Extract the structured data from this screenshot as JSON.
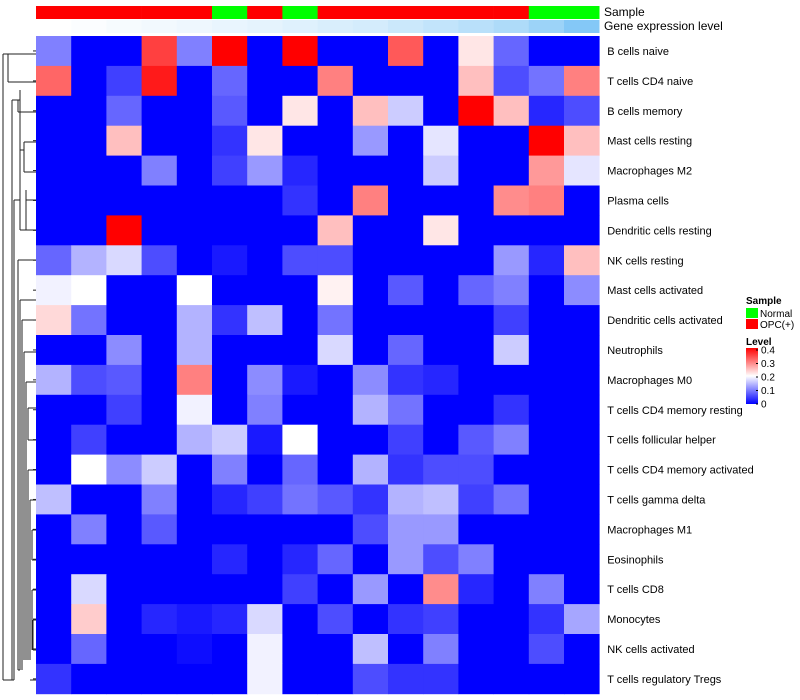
{
  "chart_data": {
    "type": "heatmap",
    "annotation_labels": {
      "sample": "Sample",
      "gene_expression": "Gene expression level"
    },
    "rows": [
      "B cells naive",
      "T cells CD4 naive",
      "B cells memory",
      "Mast cells resting",
      "Macrophages M2",
      "Plasma cells",
      "Dendritic cells resting",
      "NK cells resting",
      "Mast cells activated",
      "Dendritic cells activated",
      "Neutrophils",
      "Macrophages M0",
      "T cells CD4 memory resting",
      "T cells follicular helper",
      "T cells CD4 memory activated",
      "T cells gamma delta",
      "Macrophages M1",
      "Eosinophils",
      "T cells CD8",
      "Monocytes",
      "NK cells activated",
      "T cells regulatory  Tregs"
    ],
    "sample_groups": [
      "OPC(+)",
      "OPC(+)",
      "OPC(+)",
      "OPC(+)",
      "OPC(+)",
      "Normal",
      "OPC(+)",
      "Normal",
      "OPC(+)",
      "OPC(+)",
      "OPC(+)",
      "OPC(+)",
      "OPC(+)",
      "OPC(+)",
      "Normal",
      "Normal"
    ],
    "gene_expression_level": [
      0.0,
      0.03,
      0.06,
      0.09,
      0.12,
      0.15,
      0.18,
      0.22,
      0.26,
      0.3,
      0.36,
      0.42,
      0.48,
      0.56,
      0.68,
      0.85
    ],
    "values": [
      [
        0.1,
        0,
        0,
        0.35,
        0.1,
        0.4,
        0,
        0.4,
        0,
        0,
        0.33,
        0,
        0.22,
        0.08,
        0,
        0
      ],
      [
        0.32,
        0,
        0.05,
        0.38,
        0,
        0.08,
        0,
        0,
        0.3,
        0,
        0,
        0,
        0.25,
        0.06,
        0.09,
        0.3
      ],
      [
        0,
        0,
        0.08,
        0,
        0,
        0.07,
        0,
        0.22,
        0,
        0.25,
        0.16,
        0,
        0.4,
        0.25,
        0.03,
        0.06
      ],
      [
        0,
        0,
        0.25,
        0,
        0,
        0.04,
        0.22,
        0,
        0,
        0.12,
        0,
        0.18,
        0,
        0,
        0.4,
        0.25
      ],
      [
        0,
        0,
        0,
        0.1,
        0,
        0.05,
        0.12,
        0.03,
        0,
        0,
        0,
        0.16,
        0,
        0,
        0.28,
        0.18
      ],
      [
        0,
        0,
        0,
        0,
        0,
        0,
        0,
        0.04,
        0,
        0.3,
        0,
        0,
        0,
        0.29,
        0.3,
        0
      ],
      [
        0,
        0,
        0.4,
        0,
        0,
        0,
        0,
        0,
        0.25,
        0,
        0,
        0.22,
        0,
        0,
        0,
        0
      ],
      [
        0.08,
        0.14,
        0.17,
        0.06,
        0,
        0.02,
        0,
        0.06,
        0.06,
        0,
        0,
        0,
        0,
        0.12,
        0.03,
        0.25
      ],
      [
        0.19,
        0.2,
        0,
        0,
        0.2,
        0,
        0,
        0,
        0.21,
        0,
        0.07,
        0,
        0.08,
        0.1,
        0,
        0.11
      ],
      [
        0.23,
        0.09,
        0,
        0,
        0.14,
        0.04,
        0.15,
        0,
        0.09,
        0,
        0,
        0,
        0,
        0.05,
        0,
        0
      ],
      [
        0,
        0,
        0.11,
        0,
        0.14,
        0,
        0,
        0,
        0.17,
        0,
        0.08,
        0,
        0,
        0.16,
        0,
        0
      ],
      [
        0.14,
        0.06,
        0.07,
        0,
        0.3,
        0,
        0.11,
        0.02,
        0,
        0.11,
        0.04,
        0.03,
        0,
        0,
        0,
        0
      ],
      [
        0,
        0,
        0.05,
        0,
        0.19,
        0,
        0.1,
        0,
        0,
        0.14,
        0.09,
        0,
        0,
        0.04,
        0,
        0
      ],
      [
        0,
        0.05,
        0,
        0,
        0.14,
        0.16,
        0.02,
        0.2,
        0,
        0,
        0.05,
        0,
        0.07,
        0.1,
        0,
        0
      ],
      [
        0,
        0.2,
        0.11,
        0.16,
        0,
        0.1,
        0,
        0.08,
        0,
        0.14,
        0.04,
        0.06,
        0.06,
        0,
        0,
        0
      ],
      [
        0.15,
        0,
        0,
        0.1,
        0,
        0.03,
        0.05,
        0.09,
        0.07,
        0.04,
        0.14,
        0.15,
        0.05,
        0.09,
        0,
        0
      ],
      [
        0,
        0.1,
        0,
        0.07,
        0,
        0,
        0,
        0,
        0,
        0.06,
        0.12,
        0.12,
        0,
        0,
        0,
        0
      ],
      [
        0,
        0,
        0,
        0,
        0,
        0.03,
        0,
        0.03,
        0.08,
        0,
        0.12,
        0.06,
        0.1,
        0,
        0,
        0
      ],
      [
        0,
        0.17,
        0,
        0,
        0,
        0,
        0,
        0.05,
        0,
        0.12,
        0,
        0.29,
        0.03,
        0,
        0.1,
        0
      ],
      [
        0,
        0.24,
        0,
        0.03,
        0.02,
        0.03,
        0.17,
        0,
        0.06,
        0,
        0.04,
        0.05,
        0,
        0,
        0.04,
        0.13
      ],
      [
        0,
        0.08,
        0,
        0,
        0.01,
        0,
        0.19,
        0,
        0,
        0.15,
        0,
        0.1,
        0,
        0,
        0.06,
        0
      ],
      [
        0.04,
        0,
        0,
        0,
        0,
        0,
        0.19,
        0,
        0,
        0.06,
        0.04,
        0.04,
        0,
        0,
        0,
        0
      ]
    ],
    "color_scale": {
      "low": "#0000ff",
      "mid": "#ffffff",
      "high": "#ff0000",
      "min": 0,
      "max": 0.4
    },
    "legend": {
      "sample_title": "Sample",
      "sample_items": [
        {
          "label": "Normal",
          "color": "#00ff00"
        },
        {
          "label": "OPC(+)",
          "color": "#ff0000"
        }
      ],
      "level_title": "Level",
      "level_ticks": [
        "0.4",
        "0.3",
        "0.2",
        "0.1",
        "0"
      ]
    }
  }
}
